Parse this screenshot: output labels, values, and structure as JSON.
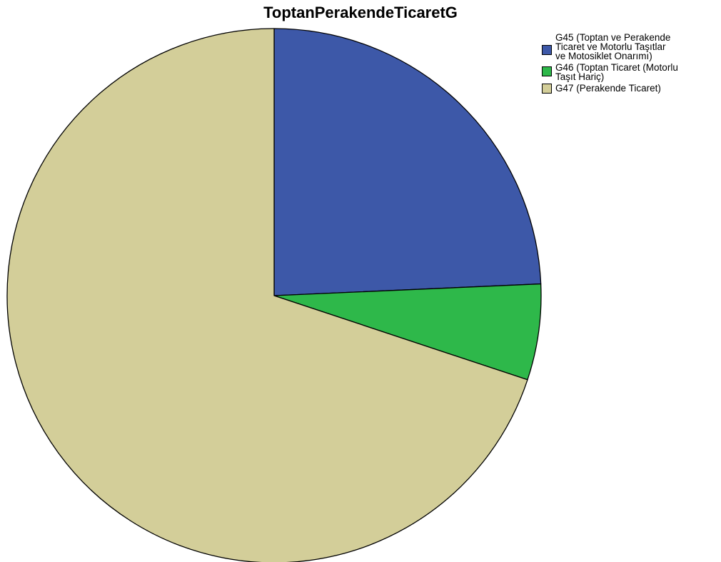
{
  "chart_data": {
    "type": "pie",
    "title": "ToptanPerakendeTicaretG",
    "categories": [
      "G45 (Toptan ve Perakende Ticaret ve Motorlu Taşıtlar ve Motosiklet Onarımı)",
      "G46 (Toptan Ticaret (Motorlu Taşıt Hariç)",
      "G47 (Perakende Ticaret)"
    ],
    "legend_lines": [
      "G45 (Toptan ve Perakende\nTicaret ve Motorlu Taşıtlar\nve Motosiklet Onarımı)",
      "G46 (Toptan Ticaret (Motorlu\nTaşıt Hariç)",
      "G47 (Perakende Ticaret)"
    ],
    "values": [
      24.3,
      5.8,
      69.9
    ],
    "colors": [
      "#3d58a8",
      "#2eb84a",
      "#d3ce99"
    ],
    "start_angle": "12 o'clock",
    "direction": "clockwise",
    "legend_position": "top-right"
  }
}
